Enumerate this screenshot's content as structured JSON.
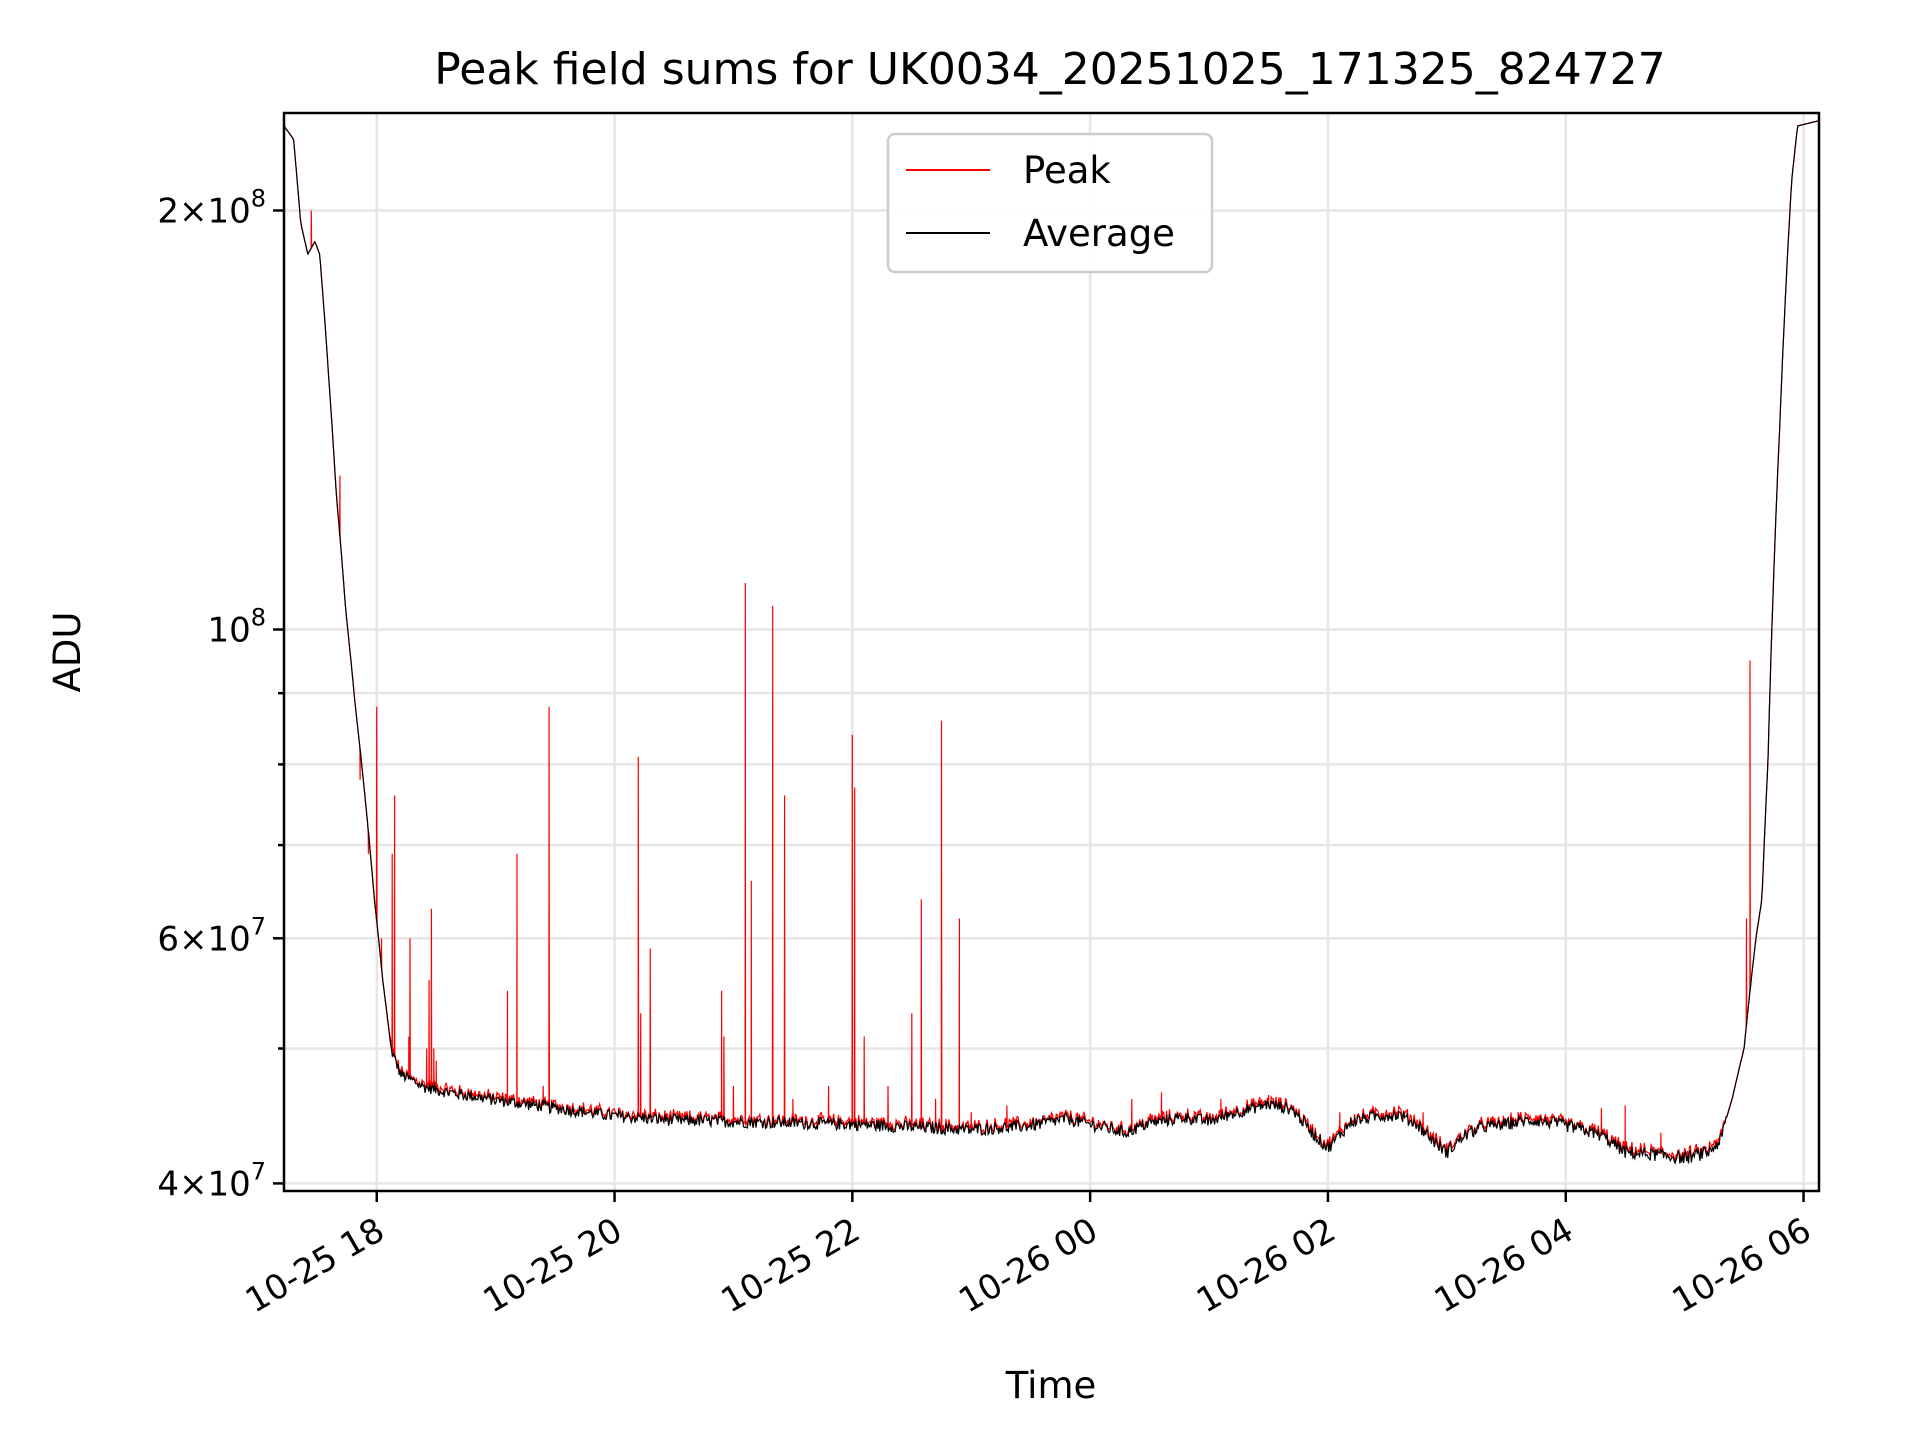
{
  "chart_data": {
    "type": "line",
    "title": "Peak field sums for UK0034_20251025_171325_824727",
    "xlabel": "Time",
    "ylabel": "ADU",
    "yscale": "log",
    "grid": true,
    "legend_position": "top-center",
    "x_range_hours": [
      -0.78,
      12.13
    ],
    "ylim": [
      39500000,
      235000000
    ],
    "x_ticks": [
      {
        "value": 0,
        "label": "10-25 18"
      },
      {
        "value": 2,
        "label": "10-25 20"
      },
      {
        "value": 4,
        "label": "10-25 22"
      },
      {
        "value": 6,
        "label": "10-26 00"
      },
      {
        "value": 8,
        "label": "10-26 02"
      },
      {
        "value": 10,
        "label": "10-26 04"
      },
      {
        "value": 12,
        "label": "10-26 06"
      }
    ],
    "y_major_ticks": [
      {
        "value": 40000000,
        "base": "4",
        "exp": "7"
      },
      {
        "value": 60000000,
        "base": "6",
        "exp": "7"
      },
      {
        "value": 100000000,
        "base": "",
        "exp": "8"
      },
      {
        "value": 200000000,
        "base": "2",
        "exp": "8"
      }
    ],
    "y_minor_ticks": [
      50000000,
      70000000,
      80000000,
      90000000
    ],
    "series": [
      {
        "name": "Peak",
        "color": "#ff0000",
        "line_width": 1.2
      },
      {
        "name": "Average",
        "color": "#000000",
        "line_width": 1.2,
        "baseline": [
          [
            -0.78,
            230
          ],
          [
            -0.7,
            225
          ],
          [
            -0.64,
            196
          ],
          [
            -0.58,
            186
          ],
          [
            -0.52,
            190
          ],
          [
            -0.48,
            186
          ],
          [
            -0.4,
            150
          ],
          [
            -0.34,
            125
          ],
          [
            -0.26,
            103
          ],
          [
            -0.18,
            88
          ],
          [
            -0.1,
            76
          ],
          [
            -0.02,
            64
          ],
          [
            0.05,
            56
          ],
          [
            0.12,
            50
          ],
          [
            0.2,
            48
          ],
          [
            0.4,
            47
          ],
          [
            0.6,
            46.6
          ],
          [
            0.8,
            46.3
          ],
          [
            1.0,
            46.0
          ],
          [
            1.5,
            45.4
          ],
          [
            2.0,
            44.8
          ],
          [
            2.5,
            44.5
          ],
          [
            3.0,
            44.4
          ],
          [
            3.5,
            44.3
          ],
          [
            4.0,
            44.2
          ],
          [
            4.5,
            44.0
          ],
          [
            5.0,
            43.8
          ],
          [
            5.5,
            44.1
          ],
          [
            5.8,
            44.6
          ],
          [
            6.0,
            44.2
          ],
          [
            6.3,
            43.6
          ],
          [
            6.5,
            44.3
          ],
          [
            6.8,
            44.7
          ],
          [
            7.0,
            44.4
          ],
          [
            7.2,
            45.0
          ],
          [
            7.5,
            45.7
          ],
          [
            7.7,
            45.3
          ],
          [
            7.9,
            43.3
          ],
          [
            8.0,
            42.5
          ],
          [
            8.2,
            44.4
          ],
          [
            8.4,
            44.8
          ],
          [
            8.6,
            44.9
          ],
          [
            8.75,
            44.2
          ],
          [
            8.9,
            42.9
          ],
          [
            9.0,
            42.2
          ],
          [
            9.15,
            43.4
          ],
          [
            9.3,
            44.0
          ],
          [
            9.5,
            44.2
          ],
          [
            9.7,
            44.5
          ],
          [
            9.9,
            44.3
          ],
          [
            10.1,
            43.9
          ],
          [
            10.3,
            43.4
          ],
          [
            10.5,
            42.2
          ],
          [
            10.8,
            42.0
          ],
          [
            11.0,
            41.8
          ],
          [
            11.2,
            42.2
          ],
          [
            11.3,
            43.0
          ],
          [
            11.4,
            46.0
          ],
          [
            11.5,
            50.0
          ],
          [
            11.55,
            55.0
          ],
          [
            11.6,
            60.0
          ],
          [
            11.65,
            64.0
          ],
          [
            11.7,
            80.0
          ],
          [
            11.75,
            110.0
          ],
          [
            11.8,
            140.0
          ],
          [
            11.85,
            175.0
          ],
          [
            11.9,
            210.0
          ],
          [
            11.95,
            230.0
          ],
          [
            12.13,
            232.0
          ]
        ],
        "baseline_units": "millions ADU"
      }
    ],
    "peak_spikes": [
      [
        -0.55,
        200
      ],
      [
        -0.31,
        129
      ],
      [
        -0.14,
        78
      ],
      [
        -0.07,
        69
      ],
      [
        0.0,
        88
      ],
      [
        0.04,
        60
      ],
      [
        0.13,
        69
      ],
      [
        0.15,
        76
      ],
      [
        0.27,
        51
      ],
      [
        0.28,
        60
      ],
      [
        0.42,
        50
      ],
      [
        0.44,
        56
      ],
      [
        0.46,
        63
      ],
      [
        0.48,
        50
      ],
      [
        0.5,
        49
      ],
      [
        0.7,
        47
      ],
      [
        1.1,
        55
      ],
      [
        1.18,
        69
      ],
      [
        1.4,
        47
      ],
      [
        1.45,
        88
      ],
      [
        2.2,
        81
      ],
      [
        2.22,
        53
      ],
      [
        2.3,
        59
      ],
      [
        2.9,
        55
      ],
      [
        2.92,
        51
      ],
      [
        3.0,
        47
      ],
      [
        3.1,
        108
      ],
      [
        3.15,
        66
      ],
      [
        3.33,
        104
      ],
      [
        3.43,
        76
      ],
      [
        3.5,
        46
      ],
      [
        3.8,
        47
      ],
      [
        4.0,
        84
      ],
      [
        4.02,
        77
      ],
      [
        4.1,
        51
      ],
      [
        4.3,
        47
      ],
      [
        4.5,
        53
      ],
      [
        4.58,
        64
      ],
      [
        4.7,
        46
      ],
      [
        4.75,
        86
      ],
      [
        4.9,
        62
      ],
      [
        5.0,
        45
      ],
      [
        5.3,
        45.5
      ],
      [
        6.35,
        46
      ],
      [
        6.6,
        46.5
      ],
      [
        7.1,
        46
      ],
      [
        7.5,
        46.3
      ],
      [
        8.1,
        45
      ],
      [
        8.8,
        45
      ],
      [
        9.6,
        45
      ],
      [
        10.3,
        45.3
      ],
      [
        10.5,
        45.5
      ],
      [
        10.8,
        43.5
      ],
      [
        11.55,
        95
      ],
      [
        11.52,
        62
      ]
    ]
  }
}
